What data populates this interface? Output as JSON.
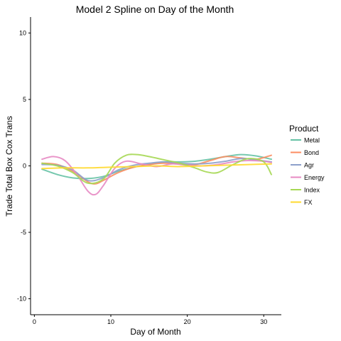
{
  "chart_data": {
    "type": "line",
    "title": "Model 2 Spline on Day of the Month",
    "xlabel": "Day of Month",
    "ylabel": "Trade Total Box Cox Trans",
    "xlim": [
      -0.5,
      32.3
    ],
    "ylim": [
      -11.2,
      11.2
    ],
    "x_ticks": [
      0,
      10,
      20,
      30
    ],
    "y_ticks": [
      -10,
      -5,
      0,
      5,
      10
    ],
    "grid": false,
    "legend": {
      "title": "Product",
      "position": "right"
    },
    "series": [
      {
        "name": "Metal",
        "color": "#66c2a5",
        "x": [
          1,
          3,
          5,
          7,
          9,
          11,
          13,
          15,
          17,
          19,
          21,
          23,
          25,
          27,
          29,
          31
        ],
        "y": [
          -0.25,
          -0.65,
          -0.9,
          -0.95,
          -0.8,
          -0.4,
          -0.1,
          0.1,
          0.3,
          0.3,
          0.35,
          0.5,
          0.7,
          0.85,
          0.75,
          0.5
        ]
      },
      {
        "name": "Bond",
        "color": "#fc8d62",
        "x": [
          1,
          3,
          5,
          7,
          8,
          9,
          11,
          13,
          15,
          17,
          19,
          21,
          23,
          25,
          27,
          29,
          31
        ],
        "y": [
          0.2,
          0.1,
          -0.4,
          -1.2,
          -1.35,
          -1.1,
          -0.5,
          -0.1,
          0.1,
          0.2,
          0.15,
          0.1,
          0.4,
          0.7,
          0.6,
          0.5,
          0.8
        ]
      },
      {
        "name": "Agr",
        "color": "#8da0cb",
        "x": [
          1,
          3,
          5,
          7,
          9,
          11,
          13,
          15,
          17,
          19,
          21,
          23,
          25,
          27,
          29,
          31
        ],
        "y": [
          0.1,
          0.05,
          -0.3,
          -1.1,
          -0.9,
          -0.3,
          0.05,
          0.2,
          0.3,
          0.2,
          0.15,
          0.2,
          0.35,
          0.55,
          0.45,
          0.3
        ]
      },
      {
        "name": "Energy",
        "color": "#e78ac3",
        "x": [
          1,
          2.5,
          4,
          5.5,
          7,
          8,
          9,
          10.5,
          12,
          14,
          16,
          18,
          20,
          22,
          24,
          26,
          28,
          30,
          31
        ],
        "y": [
          0.5,
          0.7,
          0.4,
          -0.6,
          -1.9,
          -2.15,
          -1.5,
          -0.2,
          0.35,
          0.15,
          -0.05,
          0.15,
          0.05,
          0.0,
          0.1,
          0.3,
          0.4,
          0.35,
          0.25
        ]
      },
      {
        "name": "Index",
        "color": "#a6d854",
        "x": [
          1,
          3,
          5,
          7,
          9,
          10.5,
          12,
          13.5,
          15,
          17,
          19,
          21,
          22.5,
          24,
          26,
          28,
          30,
          31
        ],
        "y": [
          0.2,
          0.0,
          -0.5,
          -1.3,
          -1.0,
          0.2,
          0.8,
          0.85,
          0.7,
          0.45,
          0.2,
          -0.15,
          -0.45,
          -0.5,
          0.1,
          0.55,
          0.3,
          -0.65
        ]
      },
      {
        "name": "FX",
        "color": "#ffd92f",
        "x": [
          1,
          4,
          7,
          10,
          13,
          16,
          19,
          22,
          25,
          28,
          31
        ],
        "y": [
          -0.2,
          -0.15,
          -0.15,
          -0.1,
          -0.05,
          0.0,
          -0.05,
          0.0,
          0.05,
          0.1,
          0.15
        ]
      }
    ]
  }
}
